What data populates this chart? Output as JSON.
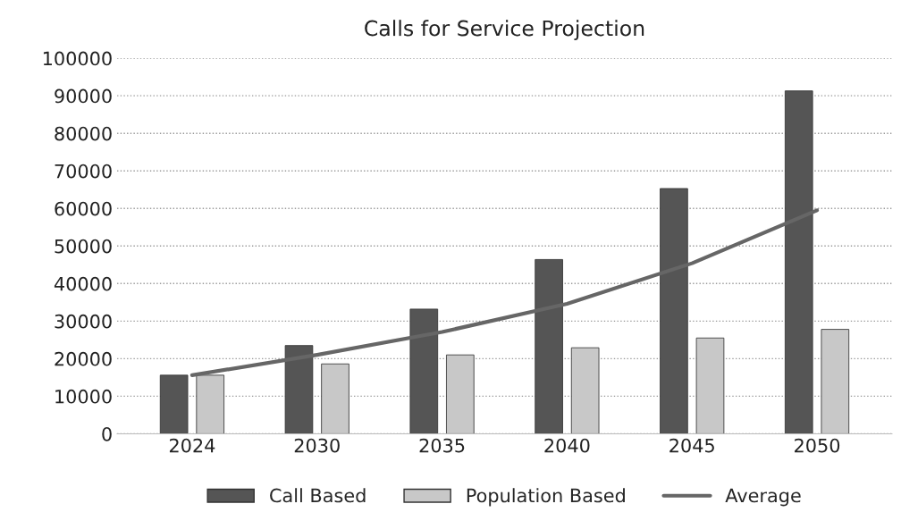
{
  "chart_data": {
    "type": "bar",
    "title": "Calls for Service Projection",
    "categories": [
      "2024",
      "2030",
      "2035",
      "2040",
      "2045",
      "2050"
    ],
    "series": [
      {
        "name": "Call Based",
        "color": "#555555",
        "values": [
          15600,
          23500,
          33200,
          46400,
          65300,
          91300
        ]
      },
      {
        "name": "Population Based",
        "color": "#c8c8c8",
        "values": [
          15600,
          18600,
          21000,
          22900,
          25500,
          27800
        ]
      },
      {
        "name": "Average",
        "type": "line",
        "color": "#666666",
        "values": [
          15600,
          21000,
          27100,
          34600,
          45400,
          59500
        ]
      }
    ],
    "ylim": [
      0,
      100000
    ],
    "yticks": [
      0,
      10000,
      20000,
      30000,
      40000,
      50000,
      60000,
      70000,
      80000,
      90000,
      100000
    ],
    "grid": "y",
    "legend": "bottom",
    "marker": "none",
    "line_style": "solid"
  }
}
